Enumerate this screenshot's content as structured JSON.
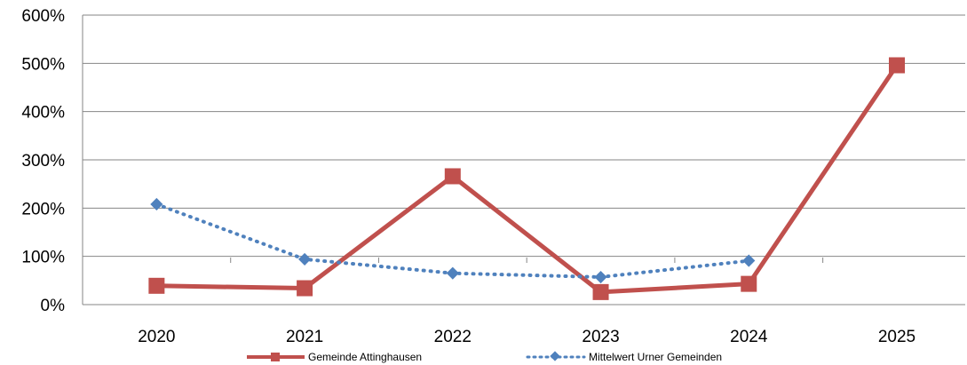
{
  "chart_data": {
    "type": "line",
    "categories": [
      "2020",
      "2021",
      "2022",
      "2023",
      "2024",
      "2025"
    ],
    "series": [
      {
        "name": "Gemeinde Attinghausen",
        "color": "#C0504D",
        "style": "solid",
        "marker": "square",
        "values": [
          39,
          34,
          266,
          26,
          43,
          496
        ]
      },
      {
        "name": "Mittelwert Urner Gemeinden",
        "color": "#4F81BD",
        "style": "dotted",
        "marker": "diamond",
        "values": [
          208,
          94,
          65,
          57,
          91,
          null
        ]
      }
    ],
    "y_ticks": [
      "0%",
      "100%",
      "200%",
      "300%",
      "400%",
      "500%",
      "600%"
    ],
    "ylim": [
      0,
      600
    ],
    "grid": "horizontal",
    "legend": "bottom"
  }
}
